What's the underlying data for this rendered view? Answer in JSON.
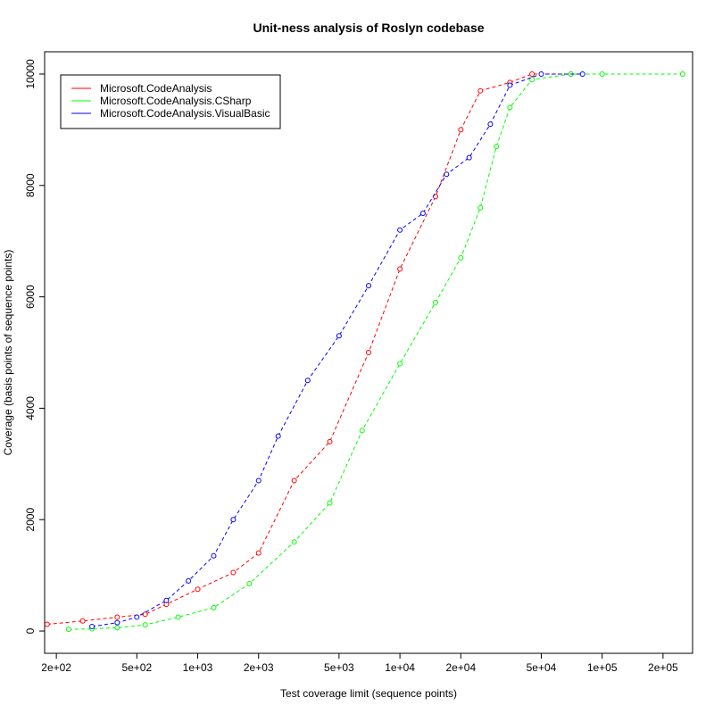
{
  "chart_data": {
    "type": "line",
    "title": "Unit-ness analysis of Roslyn codebase",
    "xlabel": "Test coverage limit (sequence points)",
    "ylabel": "Coverage (basis points of sequence points)",
    "x_scale": "log",
    "xlim": [
      175,
      280000
    ],
    "ylim": [
      -400,
      10400
    ],
    "x_ticks": [
      200,
      500,
      1000,
      2000,
      5000,
      10000,
      20000,
      50000,
      100000,
      200000
    ],
    "x_tick_labels": [
      "2e+02",
      "5e+02",
      "1e+03",
      "2e+03",
      "5e+03",
      "1e+04",
      "2e+04",
      "5e+04",
      "1e+05",
      "2e+05"
    ],
    "y_ticks": [
      0,
      2000,
      4000,
      6000,
      8000,
      10000
    ],
    "y_tick_labels": [
      "0",
      "2000",
      "4000",
      "6000",
      "8000",
      "10000"
    ],
    "legend_position": "top-left",
    "grid": false,
    "marker": "open-circle",
    "line_style": "dashed",
    "series": [
      {
        "name": "Microsoft.CodeAnalysis",
        "color": "#ff0000",
        "x": [
          180,
          270,
          400,
          550,
          700,
          1000,
          1500,
          2000,
          3000,
          4500,
          7000,
          10000,
          15000,
          20000,
          25000,
          35000,
          45000,
          70000
        ],
        "y": [
          120,
          180,
          250,
          300,
          480,
          750,
          1050,
          1400,
          2700,
          3400,
          5000,
          6500,
          7800,
          9000,
          9700,
          9850,
          10000,
          10000
        ]
      },
      {
        "name": "Microsoft.CodeAnalysis.CSharp",
        "color": "#00ff00",
        "x": [
          230,
          300,
          400,
          550,
          800,
          1200,
          1800,
          3000,
          4500,
          6500,
          10000,
          15000,
          20000,
          25000,
          30000,
          35000,
          45000,
          70000,
          100000,
          250000
        ],
        "y": [
          30,
          40,
          60,
          110,
          250,
          420,
          850,
          1600,
          2300,
          3600,
          4800,
          5900,
          6700,
          7600,
          8700,
          9400,
          9900,
          10000,
          10000,
          10000
        ]
      },
      {
        "name": "Microsoft.CodeAnalysis.VisualBasic",
        "color": "#0000ff",
        "x": [
          300,
          400,
          500,
          700,
          900,
          1200,
          1500,
          2000,
          2500,
          3500,
          5000,
          7000,
          10000,
          13000,
          17000,
          22000,
          28000,
          35000,
          50000,
          80000
        ],
        "y": [
          80,
          150,
          250,
          550,
          900,
          1350,
          2000,
          2700,
          3500,
          4500,
          5300,
          6200,
          7200,
          7500,
          8200,
          8500,
          9100,
          9800,
          10000,
          10000
        ]
      }
    ]
  }
}
